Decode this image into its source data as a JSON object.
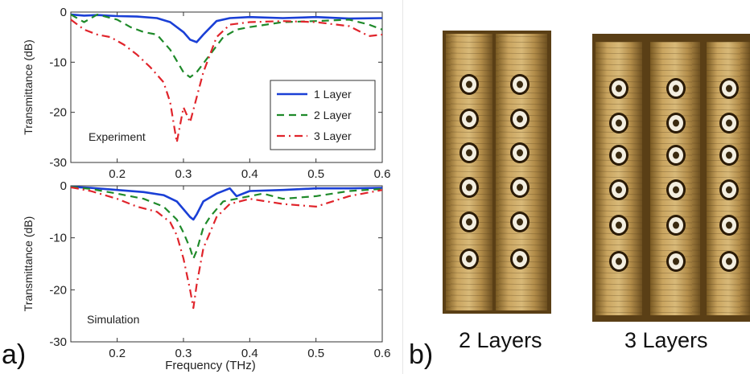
{
  "panel_a_label": "a)",
  "panel_b_label": "b)",
  "photo_labels": [
    "2 Layers",
    "3 Layers"
  ],
  "colors": {
    "layer1": "#1a3fd6",
    "layer2": "#1f8a2a",
    "layer3": "#e0242b"
  },
  "chart_data": [
    {
      "type": "line",
      "annotation": "Experiment",
      "ylabel": "Transmittance (dB)",
      "xlabel": "",
      "xlim": [
        0.13,
        0.6
      ],
      "ylim": [
        -30,
        0
      ],
      "xticks": [
        "0.2",
        "0.3",
        "0.4",
        "0.5",
        "0.6"
      ],
      "yticks": [
        "0",
        "-10",
        "-20",
        "-30"
      ],
      "legend_position": "right",
      "series": [
        {
          "name": "1 Layer",
          "style": "solid",
          "x": [
            0.13,
            0.15,
            0.17,
            0.2,
            0.23,
            0.26,
            0.28,
            0.3,
            0.31,
            0.32,
            0.33,
            0.35,
            0.37,
            0.4,
            0.45,
            0.5,
            0.55,
            0.6
          ],
          "y": [
            -0.5,
            -0.7,
            -0.6,
            -0.8,
            -0.9,
            -1.2,
            -2.0,
            -4.0,
            -5.5,
            -6.0,
            -4.5,
            -1.8,
            -1.2,
            -1.0,
            -1.2,
            -1.0,
            -1.3,
            -1.2
          ]
        },
        {
          "name": "2 Layer",
          "style": "dashed",
          "x": [
            0.13,
            0.15,
            0.17,
            0.2,
            0.22,
            0.24,
            0.26,
            0.28,
            0.3,
            0.31,
            0.32,
            0.34,
            0.36,
            0.38,
            0.4,
            0.45,
            0.5,
            0.55,
            0.58,
            0.6
          ],
          "y": [
            -0.5,
            -2.0,
            -0.5,
            -1.5,
            -3.0,
            -4.0,
            -4.5,
            -7.5,
            -12.0,
            -13.0,
            -12.0,
            -8.5,
            -5.0,
            -3.5,
            -3.0,
            -2.0,
            -1.8,
            -1.5,
            -2.5,
            -3.5
          ]
        },
        {
          "name": "3 Layer",
          "style": "dashdot",
          "x": [
            0.13,
            0.15,
            0.17,
            0.19,
            0.21,
            0.23,
            0.25,
            0.27,
            0.28,
            0.29,
            0.3,
            0.31,
            0.32,
            0.33,
            0.35,
            0.37,
            0.4,
            0.45,
            0.5,
            0.55,
            0.58,
            0.6
          ],
          "y": [
            -1.5,
            -3.5,
            -4.5,
            -5.0,
            -6.5,
            -8.5,
            -11.0,
            -14.0,
            -18.0,
            -26.0,
            -19.0,
            -22.0,
            -17.0,
            -12.0,
            -5.0,
            -2.5,
            -2.0,
            -1.8,
            -2.0,
            -2.8,
            -4.8,
            -4.5
          ]
        }
      ]
    },
    {
      "type": "line",
      "annotation": "Simulation",
      "ylabel": "Transmittance (dB)",
      "xlabel": "Frequency (THz)",
      "xlim": [
        0.13,
        0.6
      ],
      "ylim": [
        -30,
        0
      ],
      "xticks": [
        "0.2",
        "0.3",
        "0.4",
        "0.5",
        "0.6"
      ],
      "yticks": [
        "0",
        "-10",
        "-20",
        "-30"
      ],
      "series": [
        {
          "name": "1 Layer",
          "style": "solid",
          "x": [
            0.13,
            0.16,
            0.2,
            0.24,
            0.27,
            0.29,
            0.3,
            0.31,
            0.315,
            0.32,
            0.33,
            0.35,
            0.37,
            0.38,
            0.4,
            0.45,
            0.5,
            0.55,
            0.6
          ],
          "y": [
            -0.2,
            -0.4,
            -0.8,
            -1.2,
            -1.8,
            -3.0,
            -4.5,
            -6.0,
            -6.5,
            -5.5,
            -3.0,
            -1.5,
            -0.5,
            -2.0,
            -1.0,
            -0.8,
            -0.5,
            -0.5,
            -0.4
          ]
        },
        {
          "name": "2 Layer",
          "style": "dashed",
          "x": [
            0.13,
            0.16,
            0.2,
            0.24,
            0.27,
            0.29,
            0.3,
            0.31,
            0.315,
            0.32,
            0.33,
            0.34,
            0.36,
            0.38,
            0.4,
            0.42,
            0.45,
            0.5,
            0.55,
            0.6
          ],
          "y": [
            -0.2,
            -0.6,
            -1.5,
            -2.5,
            -4.0,
            -6.5,
            -9.0,
            -12.0,
            -14.0,
            -12.5,
            -8.0,
            -6.0,
            -3.0,
            -2.5,
            -2.0,
            -1.5,
            -2.5,
            -2.0,
            -1.0,
            -0.6
          ]
        },
        {
          "name": "3 Layer",
          "style": "dashdot",
          "x": [
            0.13,
            0.16,
            0.2,
            0.23,
            0.26,
            0.28,
            0.29,
            0.3,
            0.31,
            0.315,
            0.32,
            0.33,
            0.34,
            0.35,
            0.37,
            0.4,
            0.45,
            0.5,
            0.55,
            0.6
          ],
          "y": [
            -0.3,
            -1.0,
            -2.5,
            -4.0,
            -5.0,
            -7.0,
            -9.5,
            -14.0,
            -20.0,
            -23.5,
            -19.0,
            -12.0,
            -9.0,
            -6.0,
            -3.5,
            -2.5,
            -3.5,
            -4.0,
            -2.0,
            -0.8
          ]
        }
      ]
    }
  ]
}
